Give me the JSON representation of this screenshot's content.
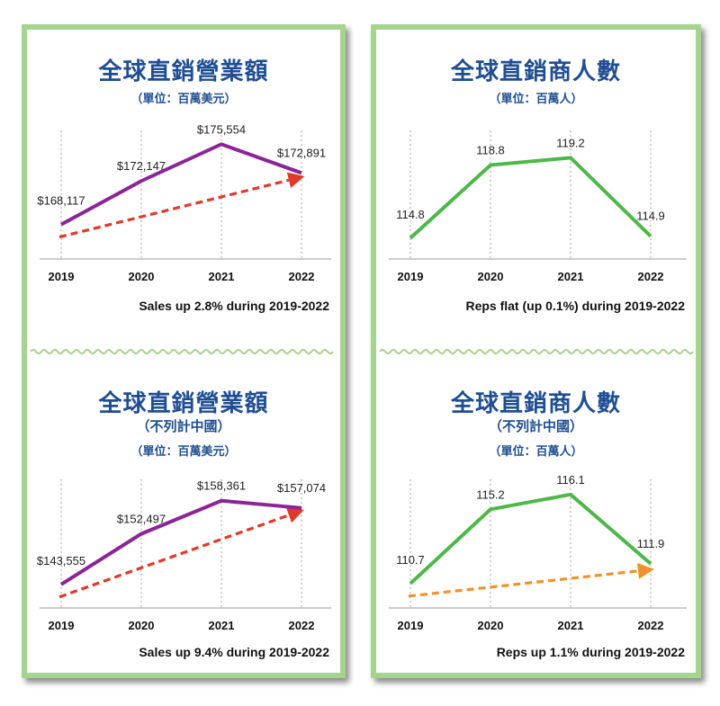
{
  "chart_data": [
    {
      "id": "sales-global",
      "type": "line",
      "title": "全球直銷營業額",
      "subtitle": "",
      "unit": "（單位：百萬美元）",
      "categories": [
        "2019",
        "2020",
        "2021",
        "2022"
      ],
      "values": [
        168117,
        172147,
        175554,
        172891
      ],
      "value_labels": [
        "$168,117",
        "$172,147",
        "$175,554",
        "$172,891"
      ],
      "ylim": [
        165500,
        176500
      ],
      "line_color": "#8b2597",
      "trend_color": "#e03a2a",
      "trend_arrow": true,
      "caption": "Sales up 2.8% during 2019-2022"
    },
    {
      "id": "reps-global",
      "type": "line",
      "title": "全球直銷商人數",
      "subtitle": "",
      "unit": "（單位：百萬人）",
      "categories": [
        "2019",
        "2020",
        "2021",
        "2022"
      ],
      "values": [
        114.8,
        118.8,
        119.2,
        114.9
      ],
      "value_labels": [
        "114.8",
        "118.8",
        "119.2",
        "114.9"
      ],
      "ylim": [
        114.0,
        120.5
      ],
      "line_color": "#4db848",
      "trend_arrow": false,
      "caption": "Reps flat (up 0.1%) during 2019-2022"
    },
    {
      "id": "sales-exchina",
      "type": "line",
      "title": "全球直銷營業額",
      "subtitle": "（不列計中國）",
      "unit": "（單位：百萬美元）",
      "categories": [
        "2019",
        "2020",
        "2021",
        "2022"
      ],
      "values": [
        143555,
        152497,
        158361,
        157074
      ],
      "value_labels": [
        "$143,555",
        "$152,497",
        "$158,361",
        "$157,074"
      ],
      "ylim": [
        140500,
        161500
      ],
      "line_color": "#8b2597",
      "trend_color": "#e03a2a",
      "trend_arrow": true,
      "caption": "Sales up 9.4% during 2019-2022"
    },
    {
      "id": "reps-exchina",
      "type": "line",
      "title": "全球直銷商人數",
      "subtitle": "（不列計中國）",
      "unit": "（單位：百萬人）",
      "categories": [
        "2019",
        "2020",
        "2021",
        "2022"
      ],
      "values": [
        110.7,
        115.2,
        116.1,
        111.9
      ],
      "value_labels": [
        "110.7",
        "115.2",
        "116.1",
        "111.9"
      ],
      "ylim": [
        109.6,
        116.8
      ],
      "line_color": "#4db848",
      "trend_color": "#f0922b",
      "trend_arrow": true,
      "caption": "Reps up 1.1% during 2019-2022"
    }
  ]
}
